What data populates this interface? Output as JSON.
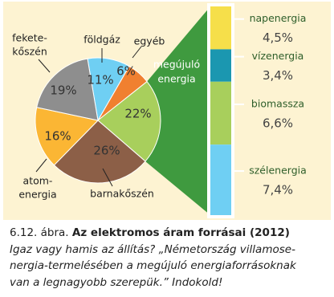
{
  "chart_data": [
    {
      "type": "pie",
      "categories": [
        [
          "földgáz"
        ],
        [
          "egyéb"
        ],
        [
          "megújuló",
          "energia"
        ],
        [
          "barnakőszén"
        ],
        [
          "atom-",
          "energia"
        ],
        [
          "fekete-",
          "kőszén"
        ]
      ],
      "values": [
        11,
        6,
        22,
        26,
        16,
        19
      ],
      "value_labels": [
        "11%",
        "6%",
        "22%",
        "26%",
        "16%",
        "19%"
      ],
      "colors": [
        "#6fcff3",
        "#f08030",
        "#a8cf5c",
        "#8c5f47",
        "#fbb634",
        "#8e8e8e"
      ]
    },
    {
      "type": "stacked-bar",
      "categories": [
        "napenergia",
        "vízenergia",
        "biomassza",
        "szélenergia"
      ],
      "values": [
        4.5,
        3.4,
        6.6,
        7.4
      ],
      "value_labels": [
        "4,5%",
        "3,4%",
        "6,6%",
        "7,4%"
      ],
      "colors": [
        "#f6df4a",
        "#1b97b0",
        "#a8cf5c",
        "#6fcff3"
      ]
    }
  ],
  "caption": {
    "label": "6.12. ábra.",
    "title": "Az elektromos áram forrásai (2012)",
    "text": [
      "Igaz vagy hamis az állítás? „Németország villamose-",
      "nergia-termelésében a megújuló energiaforrásoknak",
      "van a legnagyobb szerepük.” Indokold!"
    ]
  }
}
